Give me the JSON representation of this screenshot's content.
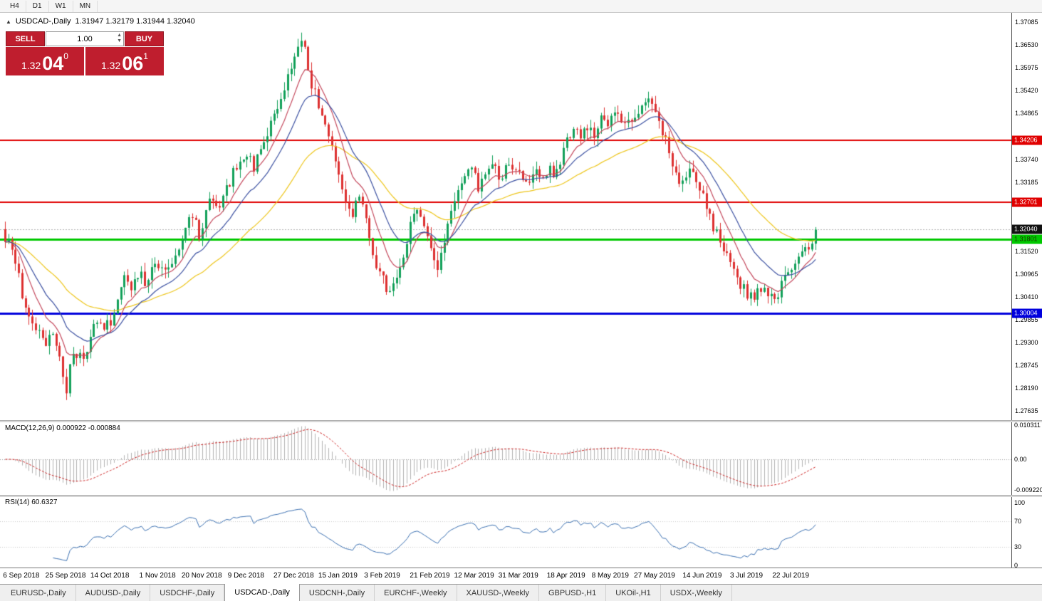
{
  "toolbar": {
    "timeframes": [
      "H4",
      "D1",
      "W1",
      "MN"
    ]
  },
  "chart": {
    "header": {
      "title": "USDCAD-,Daily",
      "ohlc": "1.31947 1.32179 1.31944 1.32040"
    },
    "trade_panel": {
      "sell_label": "SELL",
      "buy_label": "BUY",
      "volume": "1.00",
      "sell_price": {
        "prefix": "1.32",
        "pips": "04",
        "frac": "0"
      },
      "buy_price": {
        "prefix": "1.32",
        "pips": "06",
        "frac": "1"
      },
      "panel_color": "#bf1e2e"
    },
    "price_axis": {
      "labels": [
        "1.37085",
        "1.36530",
        "1.35975",
        "1.35420",
        "1.34865",
        "1.33740",
        "1.33185",
        "1.31520",
        "1.30965",
        "1.30410",
        "1.29855",
        "1.29300",
        "1.28745",
        "1.28190",
        "1.27635"
      ],
      "badges": [
        {
          "text": "1.34206",
          "price": 1.34206,
          "bg": "#e00000",
          "fg": "#ffffff"
        },
        {
          "text": "1.32701",
          "price": 1.32701,
          "bg": "#e00000",
          "fg": "#ffffff"
        },
        {
          "text": "1.32040",
          "price": 1.3204,
          "bg": "#111111",
          "fg": "#ffffff"
        },
        {
          "text": "1.31801",
          "price": 1.31801,
          "bg": "#00c800",
          "fg": "#1a3300"
        },
        {
          "text": "1.30004",
          "price": 1.30004,
          "bg": "#0000dd",
          "fg": "#ffffff"
        }
      ]
    }
  },
  "macd_panel": {
    "label": "MACD(12,26,9) 0.000922 -0.000884",
    "axis": [
      "0.010311",
      "0.00",
      "-0.009220"
    ]
  },
  "rsi_panel": {
    "label": "RSI(14) 60.6327",
    "axis": [
      "100",
      "70",
      "30",
      "0"
    ]
  },
  "tabs": [
    {
      "label": "EURUSD-,Daily",
      "active": false
    },
    {
      "label": "AUDUSD-,Daily",
      "active": false
    },
    {
      "label": "USDCHF-,Daily",
      "active": false
    },
    {
      "label": "USDCAD-,Daily",
      "active": true
    },
    {
      "label": "USDCNH-,Daily",
      "active": false
    },
    {
      "label": "EURCHF-,Weekly",
      "active": false
    },
    {
      "label": "XAUUSD-,Weekly",
      "active": false
    },
    {
      "label": "GBPUSD-,H1",
      "active": false
    },
    {
      "label": "UKOil-,H1",
      "active": false
    },
    {
      "label": "USDX-,Weekly",
      "active": false
    }
  ],
  "chart_data": {
    "type": "candlestick",
    "title": "USDCAD-,Daily",
    "ohlc_display": "1.31947 1.32179 1.31944 1.32040",
    "price_range": {
      "top": 1.37085,
      "bottom": 1.27635
    },
    "candle_count": 239,
    "current_price": 1.3204,
    "current_price_line_color": "#b0b0b0",
    "candle_up_color": "#12a05a",
    "candle_down_color": "#dd3030",
    "close_waypoints": [
      [
        0,
        1.3185
      ],
      [
        2,
        1.315
      ],
      [
        4,
        1.3085
      ],
      [
        6,
        1.301
      ],
      [
        8,
        1.2965
      ],
      [
        10,
        1.2945
      ],
      [
        12,
        1.2925
      ],
      [
        14,
        1.2965
      ],
      [
        16,
        1.29
      ],
      [
        17,
        1.284
      ],
      [
        18,
        1.2815
      ],
      [
        19,
        1.287
      ],
      [
        21,
        1.2905
      ],
      [
        23,
        1.2875
      ],
      [
        25,
        1.294
      ],
      [
        27,
        1.2985
      ],
      [
        29,
        1.296
      ],
      [
        31,
        1.2985
      ],
      [
        33,
        1.3035
      ],
      [
        35,
        1.308
      ],
      [
        37,
        1.3055
      ],
      [
        39,
        1.31
      ],
      [
        41,
        1.3075
      ],
      [
        43,
        1.311
      ],
      [
        45,
        1.3125
      ],
      [
        47,
        1.3095
      ],
      [
        49,
        1.3135
      ],
      [
        51,
        1.317
      ],
      [
        53,
        1.3215
      ],
      [
        55,
        1.324
      ],
      [
        57,
        1.3195
      ],
      [
        59,
        1.3245
      ],
      [
        61,
        1.3285
      ],
      [
        63,
        1.325
      ],
      [
        65,
        1.3305
      ],
      [
        67,
        1.334
      ],
      [
        69,
        1.3375
      ],
      [
        71,
        1.339
      ],
      [
        73,
        1.3355
      ],
      [
        75,
        1.34
      ],
      [
        77,
        1.3445
      ],
      [
        79,
        1.348
      ],
      [
        81,
        1.3525
      ],
      [
        83,
        1.358
      ],
      [
        85,
        1.3635
      ],
      [
        86,
        1.366
      ],
      [
        88,
        1.364
      ],
      [
        90,
        1.356
      ],
      [
        92,
        1.351
      ],
      [
        94,
        1.346
      ],
      [
        96,
        1.341
      ],
      [
        98,
        1.334
      ],
      [
        100,
        1.327
      ],
      [
        102,
        1.324
      ],
      [
        104,
        1.329
      ],
      [
        106,
        1.322
      ],
      [
        108,
        1.315
      ],
      [
        110,
        1.31
      ],
      [
        112,
        1.306
      ],
      [
        113,
        1.304
      ],
      [
        115,
        1.309
      ],
      [
        117,
        1.315
      ],
      [
        119,
        1.321
      ],
      [
        121,
        1.325
      ],
      [
        123,
        1.3215
      ],
      [
        125,
        1.316
      ],
      [
        127,
        1.311
      ],
      [
        129,
        1.3175
      ],
      [
        131,
        1.324
      ],
      [
        133,
        1.33
      ],
      [
        135,
        1.333
      ],
      [
        137,
        1.3345
      ],
      [
        139,
        1.331
      ],
      [
        141,
        1.335
      ],
      [
        143,
        1.337
      ],
      [
        145,
        1.333
      ],
      [
        147,
        1.335
      ],
      [
        149,
        1.3345
      ],
      [
        151,
        1.3355
      ],
      [
        153,
        1.332
      ],
      [
        155,
        1.3345
      ],
      [
        157,
        1.3335
      ],
      [
        159,
        1.335
      ],
      [
        161,
        1.334
      ],
      [
        163,
        1.337
      ],
      [
        165,
        1.3415
      ],
      [
        167,
        1.345
      ],
      [
        169,
        1.3435
      ],
      [
        171,
        1.346
      ],
      [
        173,
        1.344
      ],
      [
        175,
        1.347
      ],
      [
        177,
        1.3455
      ],
      [
        179,
        1.348
      ],
      [
        181,
        1.3465
      ],
      [
        183,
        1.3485
      ],
      [
        185,
        1.347
      ],
      [
        187,
        1.351
      ],
      [
        189,
        1.3535
      ],
      [
        191,
        1.35
      ],
      [
        193,
        1.344
      ],
      [
        195,
        1.339
      ],
      [
        197,
        1.333
      ],
      [
        199,
        1.331
      ],
      [
        201,
        1.335
      ],
      [
        203,
        1.333
      ],
      [
        205,
        1.3295
      ],
      [
        207,
        1.324
      ],
      [
        209,
        1.319
      ],
      [
        211,
        1.316
      ],
      [
        213,
        1.312
      ],
      [
        215,
        1.308
      ],
      [
        217,
        1.306
      ],
      [
        219,
        1.304
      ],
      [
        221,
        1.3055
      ],
      [
        223,
        1.307
      ],
      [
        225,
        1.3035
      ],
      [
        227,
        1.305
      ],
      [
        229,
        1.3085
      ],
      [
        231,
        1.312
      ],
      [
        233,
        1.3145
      ],
      [
        235,
        1.3155
      ],
      [
        237,
        1.3175
      ],
      [
        238,
        1.3204
      ]
    ],
    "horizontal_lines": [
      {
        "price": 1.34206,
        "color": "#e00000",
        "width": 2
      },
      {
        "price": 1.32701,
        "color": "#e00000",
        "width": 2
      },
      {
        "price": 1.31801,
        "color": "#00c800",
        "width": 3
      },
      {
        "price": 1.30004,
        "color": "#0000dd",
        "width": 3
      }
    ],
    "moving_averages": [
      {
        "period": 45,
        "color": "#edc51a"
      },
      {
        "period": 9,
        "color": "#c4485c"
      },
      {
        "period": 18,
        "color": "#3a4fa0"
      }
    ],
    "date_ticks": [
      [
        5,
        "6 Sep 2018"
      ],
      [
        18,
        "25 Sep 2018"
      ],
      [
        31,
        "14 Oct 2018"
      ],
      [
        45,
        "1 Nov 2018"
      ],
      [
        58,
        "20 Nov 2018"
      ],
      [
        71,
        "9 Dec 2018"
      ],
      [
        85,
        "27 Dec 2018"
      ],
      [
        98,
        "15 Jan 2019"
      ],
      [
        111,
        "3 Feb 2019"
      ],
      [
        125,
        "21 Feb 2019"
      ],
      [
        138,
        "12 Mar 2019"
      ],
      [
        151,
        "31 Mar 2019"
      ],
      [
        165,
        "18 Apr 2019"
      ],
      [
        178,
        "8 May 2019"
      ],
      [
        191,
        "27 May 2019"
      ],
      [
        205,
        "14 Jun 2019"
      ],
      [
        218,
        "3 Jul 2019"
      ],
      [
        231,
        "22 Jul 2019"
      ]
    ],
    "macd": {
      "fast": 12,
      "slow": 26,
      "signal_period": 9,
      "display_value": "0.000922",
      "display_signal": "-0.000884",
      "scale_top": 0.010311,
      "scale_bottom": -0.00922,
      "histogram_color": "#b2b2b2",
      "signal_color": "#cc2222"
    },
    "rsi": {
      "period": 14,
      "display_value": "60.6327",
      "levels": [
        70,
        30
      ],
      "line_color": "#3a6fb0"
    }
  }
}
